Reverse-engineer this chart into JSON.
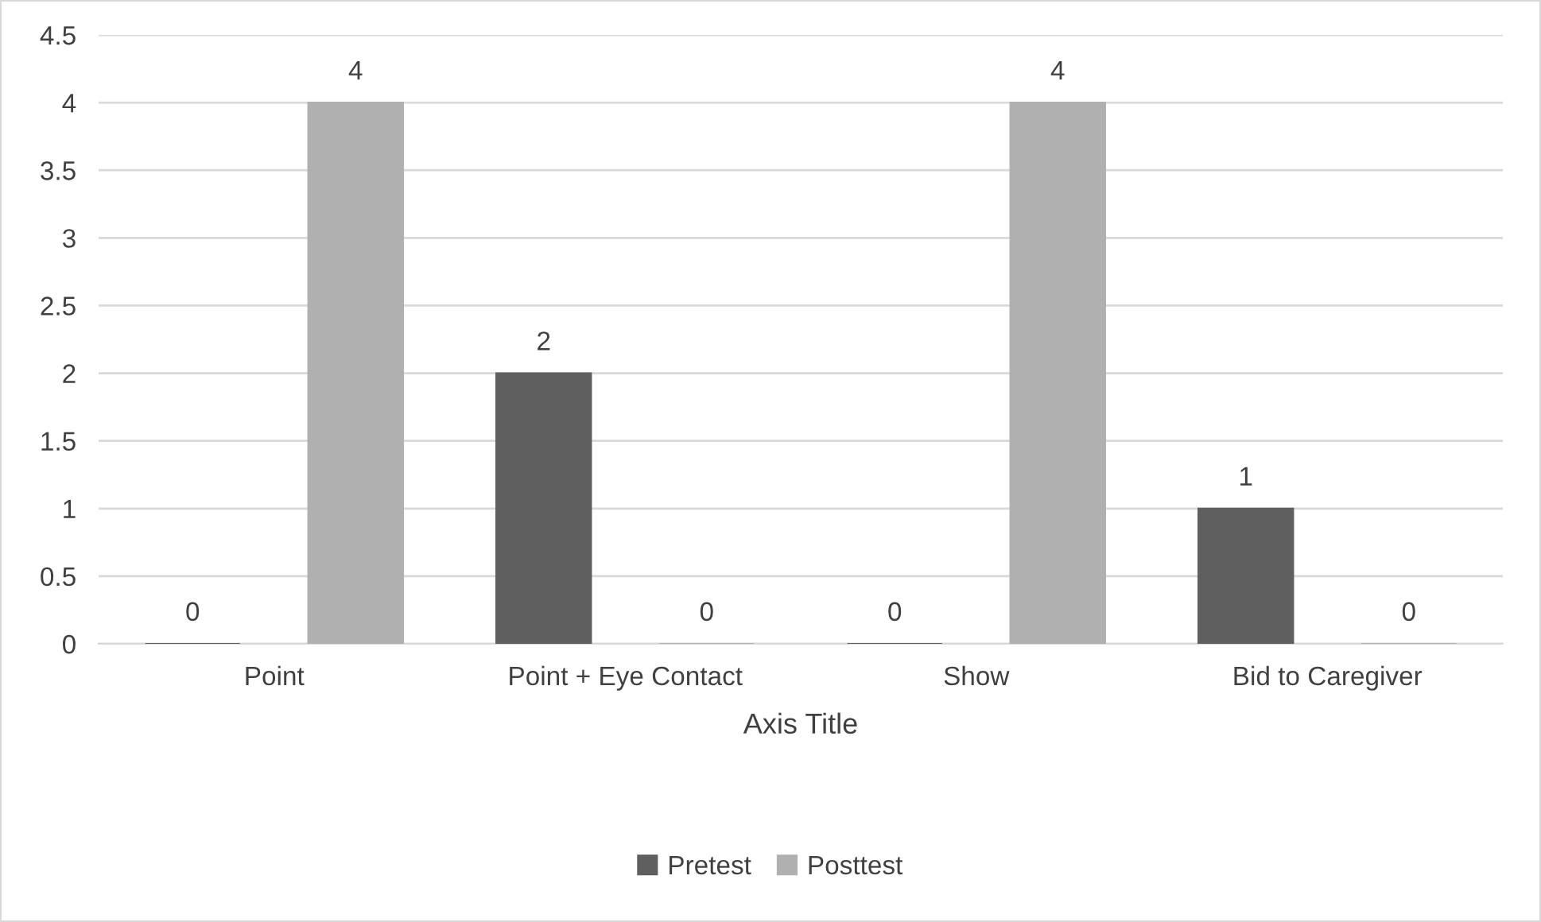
{
  "chart_data": {
    "type": "bar",
    "xlabel": "Axis Title",
    "categories": [
      "Point",
      "Point + Eye Contact",
      "Show",
      "Bid to Caregiver"
    ],
    "series": [
      {
        "name": "Pretest",
        "color": "#5f5f5f",
        "values": [
          0,
          2,
          0,
          1
        ]
      },
      {
        "name": "Posttest",
        "color": "#b0b0b0",
        "values": [
          4,
          0,
          4,
          0
        ]
      }
    ],
    "ylim": [
      0,
      4.5
    ],
    "yticks": [
      0,
      0.5,
      1,
      1.5,
      2,
      2.5,
      3,
      3.5,
      4,
      4.5
    ],
    "grid": "y",
    "legend": "bottom",
    "data_labels": true
  }
}
